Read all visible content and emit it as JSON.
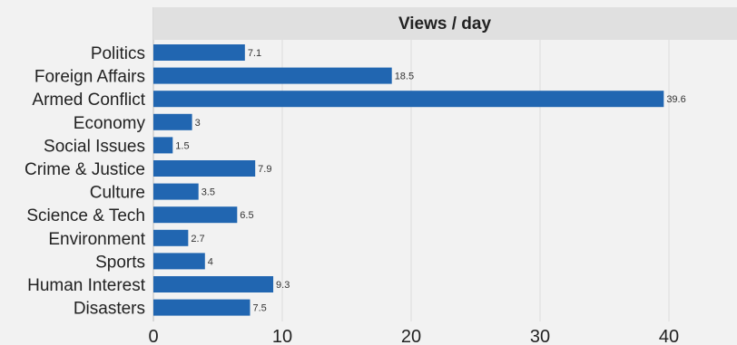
{
  "chart_data": {
    "type": "bar",
    "orientation": "horizontal",
    "title": "Views / day",
    "xlabel": "",
    "ylabel": "",
    "categories": [
      "Politics",
      "Foreign Affairs",
      "Armed Conflict",
      "Economy",
      "Social Issues",
      "Crime & Justice",
      "Culture",
      "Science & Tech",
      "Environment",
      "Sports",
      "Human Interest",
      "Disasters"
    ],
    "values": [
      7.1,
      18.5,
      39.6,
      3,
      1.5,
      7.9,
      3.5,
      6.5,
      2.7,
      4,
      9.3,
      7.5
    ],
    "value_labels": [
      "7.1",
      "18.5",
      "39.6",
      "3",
      "1.5",
      "7.9",
      "3.5",
      "6.5",
      "2.7",
      "4",
      "9.3",
      "7.5"
    ],
    "xlim": [
      0,
      45
    ],
    "xticks": [
      0,
      10,
      20,
      30,
      40
    ],
    "xtick_labels": [
      "0",
      "10",
      "20",
      "30",
      "40"
    ],
    "grid": true,
    "legend": "none",
    "colors": {
      "bar": "#2166b1",
      "panel": "#f2f2f2",
      "header": "#e0e0e0",
      "grid": "#dcdcdc",
      "axis": "#cfcfcf"
    }
  }
}
